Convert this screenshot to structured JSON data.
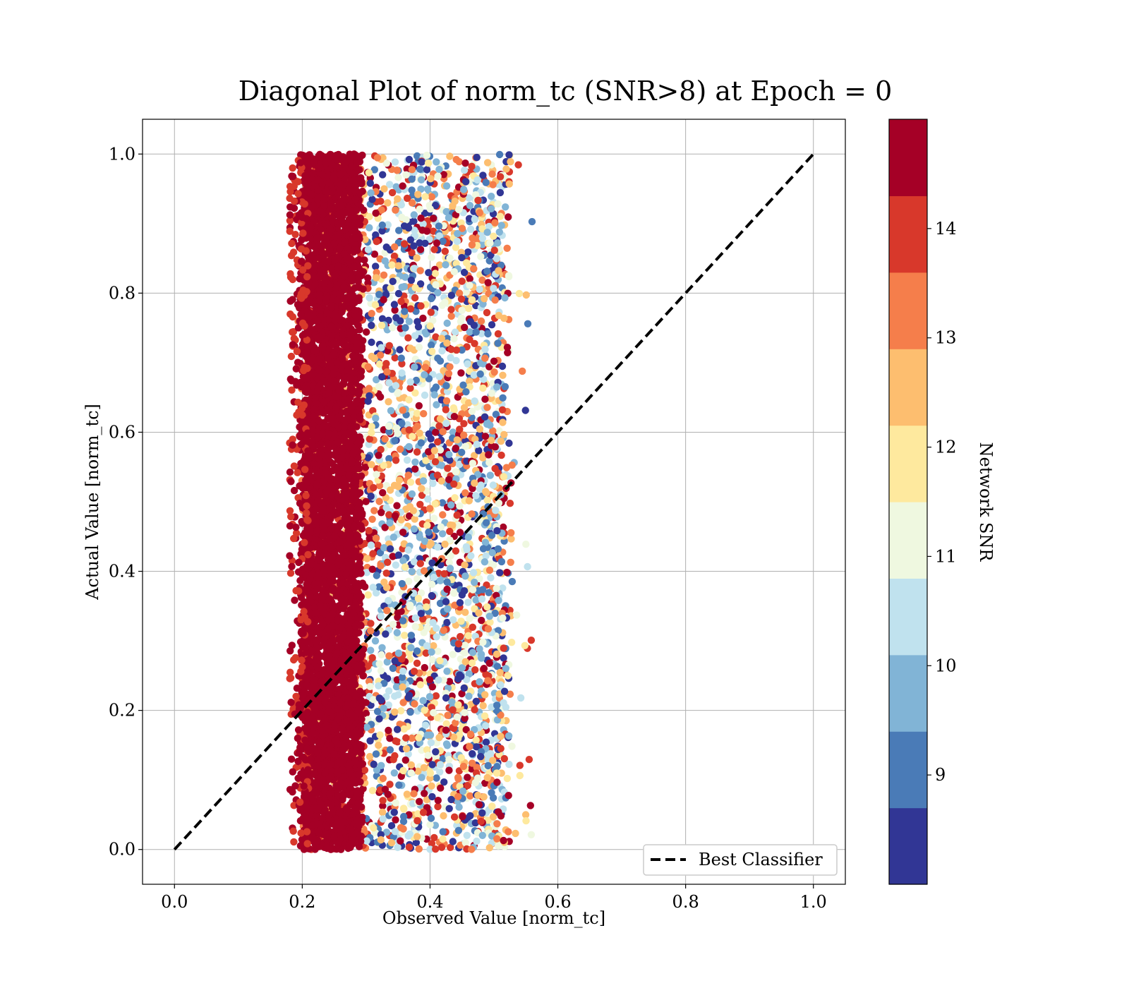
{
  "chart_data": {
    "type": "scatter",
    "title": "Diagonal Plot of norm_tc (SNR>8) at Epoch = 0",
    "xlabel": "Observed Value [norm_tc]",
    "ylabel": "Actual Value [norm_tc]",
    "xlim": [
      -0.05,
      1.05
    ],
    "ylim": [
      -0.05,
      1.05
    ],
    "x_ticks": [
      "0.0",
      "0.2",
      "0.4",
      "0.6",
      "0.8",
      "1.0"
    ],
    "y_ticks": [
      "0.0",
      "0.2",
      "0.4",
      "0.6",
      "0.8",
      "1.0"
    ],
    "grid": true,
    "legend": {
      "position": "bottom-right",
      "entries": [
        "Best Classifier"
      ]
    },
    "reference_line": {
      "name": "Best Classifier",
      "x": [
        0.0,
        1.0
      ],
      "y": [
        0.0,
        1.0
      ],
      "style": "dashed",
      "color": "#000000"
    },
    "colorbar": {
      "label": "Network SNR",
      "range": [
        8,
        15
      ],
      "ticks": [
        "9",
        "10",
        "11",
        "12",
        "13",
        "14"
      ],
      "tick_values": [
        9,
        10,
        11,
        12,
        13,
        14
      ],
      "bins": [
        {
          "min": 8.0,
          "max": 8.7,
          "color": "#313695"
        },
        {
          "min": 8.7,
          "max": 9.4,
          "color": "#4a7bb7"
        },
        {
          "min": 9.4,
          "max": 10.1,
          "color": "#81b4d6"
        },
        {
          "min": 10.1,
          "max": 10.8,
          "color": "#c0e2ee"
        },
        {
          "min": 10.8,
          "max": 11.5,
          "color": "#eff8e0"
        },
        {
          "min": 11.5,
          "max": 12.2,
          "color": "#fee99e"
        },
        {
          "min": 12.2,
          "max": 12.9,
          "color": "#fdbe6f"
        },
        {
          "min": 12.9,
          "max": 13.6,
          "color": "#f57e4b"
        },
        {
          "min": 13.6,
          "max": 14.3,
          "color": "#d8382b"
        },
        {
          "min": 14.3,
          "max": 15.0,
          "color": "#a50026"
        }
      ]
    },
    "scatter_distribution": {
      "x_range": [
        0.18,
        0.56
      ],
      "y_range": [
        0.0,
        1.0
      ],
      "dense_band_x": [
        0.2,
        0.29
      ],
      "dense_band_snr": 14.5
    }
  }
}
